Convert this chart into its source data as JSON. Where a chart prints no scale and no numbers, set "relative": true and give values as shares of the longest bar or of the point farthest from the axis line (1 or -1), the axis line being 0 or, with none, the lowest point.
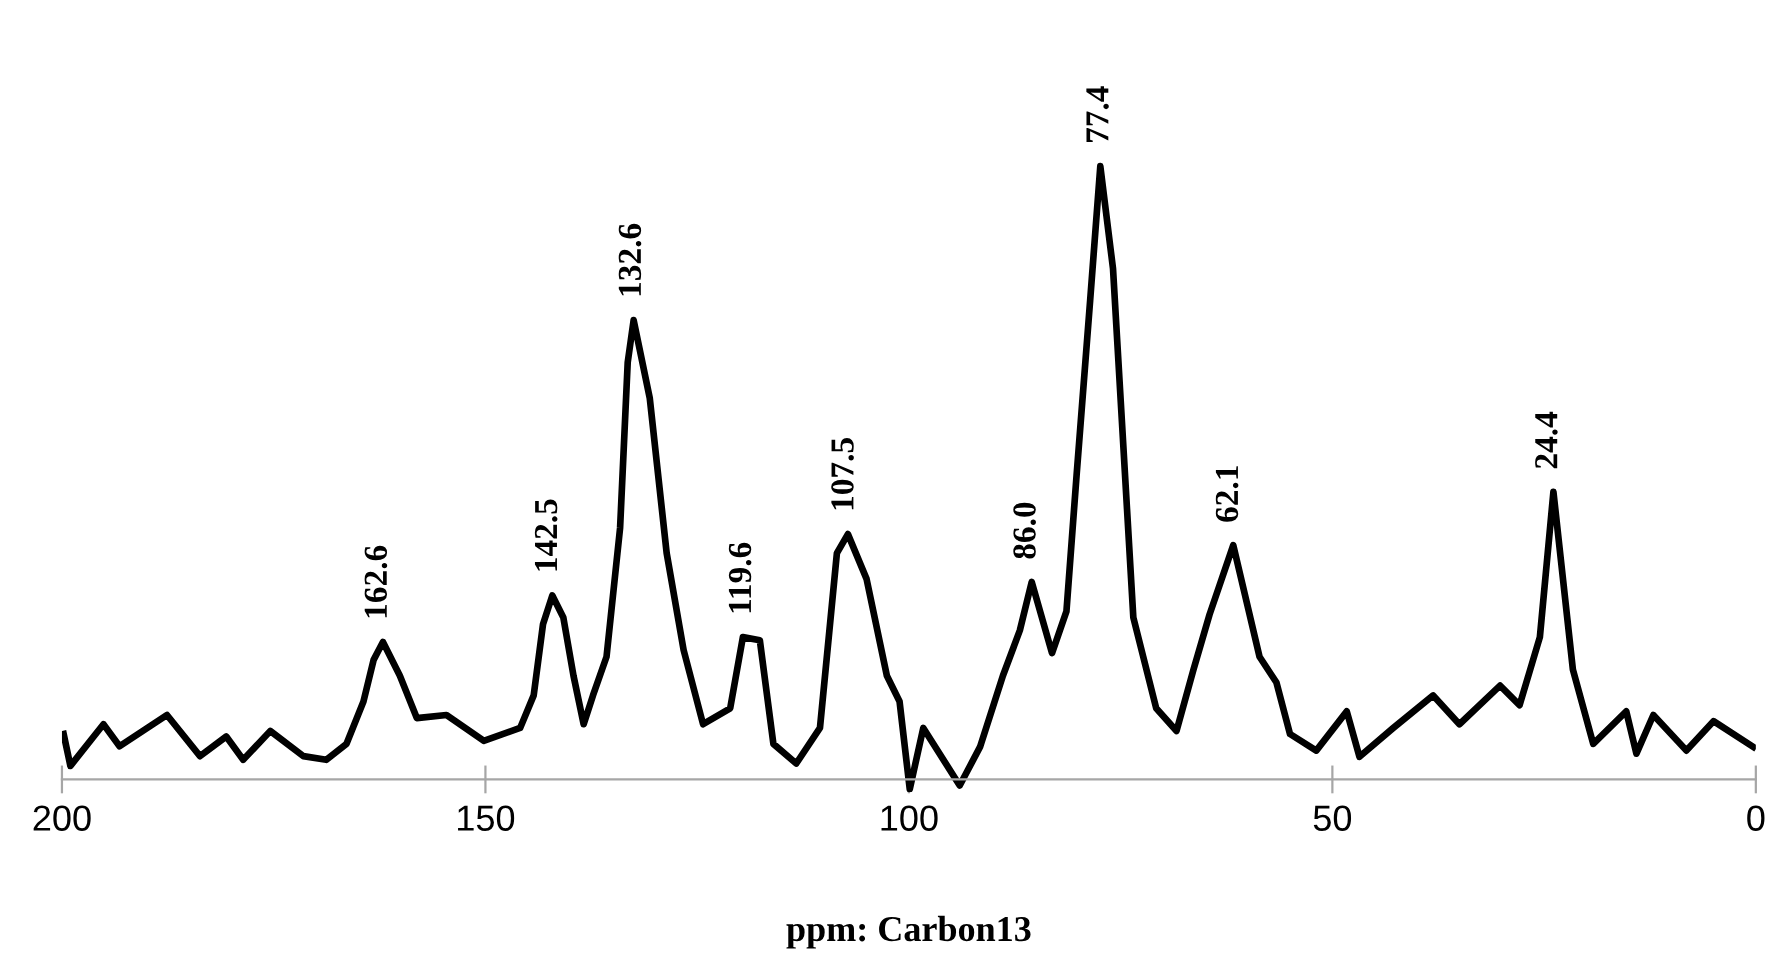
{
  "chart_data": {
    "type": "line",
    "relative": true,
    "xlabel": "ppm: Carbon13",
    "xlim": [
      200,
      0
    ],
    "xticks": [
      200,
      150,
      100,
      50,
      0
    ],
    "grid": false,
    "legend": false,
    "marker": "none",
    "line_style": "solid",
    "series": [
      {
        "color": "#000000",
        "x": [
          199.8,
          199.0,
          195.1,
          193.2,
          187.6,
          183.7,
          180.6,
          178.6,
          175.4,
          171.5,
          168.8,
          166.4,
          164.4,
          163.2,
          162.1,
          160.1,
          158.1,
          154.6,
          150.2,
          145.9,
          144.3,
          143.2,
          142.1,
          140.8,
          139.6,
          138.4,
          137.3,
          135.7,
          134.1,
          133.2,
          132.5,
          130.6,
          128.6,
          126.6,
          124.3,
          121.1,
          119.6,
          117.6,
          116.0,
          113.3,
          110.5,
          108.5,
          107.2,
          105.0,
          102.6,
          101.1,
          99.9,
          98.3,
          94.0,
          91.6,
          88.9,
          86.9,
          85.5,
          83.1,
          81.4,
          80.2,
          78.6,
          77.4,
          75.9,
          73.5,
          70.8,
          68.4,
          66.4,
          64.5,
          61.7,
          58.6,
          56.6,
          55.0,
          51.9,
          48.3,
          46.8,
          42.8,
          38.1,
          35.0,
          30.2,
          27.9,
          25.5,
          23.9,
          21.6,
          19.2,
          15.3,
          14.1,
          12.1,
          8.2,
          5.0,
          0.3
        ],
        "values": [
          0.074,
          0.022,
          0.09,
          0.054,
          0.105,
          0.038,
          0.07,
          0.032,
          0.079,
          0.038,
          0.032,
          0.058,
          0.127,
          0.195,
          0.224,
          0.169,
          0.1,
          0.105,
          0.063,
          0.084,
          0.137,
          0.253,
          0.3,
          0.264,
          0.169,
          0.09,
          0.137,
          0.2,
          0.41,
          0.68,
          0.749,
          0.622,
          0.369,
          0.211,
          0.09,
          0.116,
          0.232,
          0.227,
          0.058,
          0.026,
          0.084,
          0.369,
          0.4,
          0.327,
          0.169,
          0.127,
          -0.016,
          0.084,
          -0.01,
          0.053,
          0.169,
          0.243,
          0.322,
          0.206,
          0.274,
          0.496,
          0.781,
          1.0,
          0.833,
          0.264,
          0.116,
          0.079,
          0.179,
          0.269,
          0.382,
          0.2,
          0.158,
          0.074,
          0.047,
          0.111,
          0.037,
          0.084,
          0.137,
          0.09,
          0.153,
          0.121,
          0.232,
          0.469,
          0.179,
          0.058,
          0.111,
          0.042,
          0.105,
          0.047,
          0.095,
          0.053
        ]
      }
    ],
    "annotations": [
      {
        "text": "162.6",
        "x": 162.6,
        "y": 0.224
      },
      {
        "text": "142.5",
        "x": 142.5,
        "y": 0.3
      },
      {
        "text": "132.6",
        "x": 132.6,
        "y": 0.749
      },
      {
        "text": "119.6",
        "x": 119.6,
        "y": 0.232
      },
      {
        "text": "107.5",
        "x": 107.5,
        "y": 0.4
      },
      {
        "text": "86.0",
        "x": 86.0,
        "y": 0.322
      },
      {
        "text": "77.4",
        "x": 77.4,
        "y": 1.0
      },
      {
        "text": "62.1",
        "x": 62.1,
        "y": 0.382
      },
      {
        "text": "24.4",
        "x": 24.4,
        "y": 0.469
      }
    ]
  }
}
